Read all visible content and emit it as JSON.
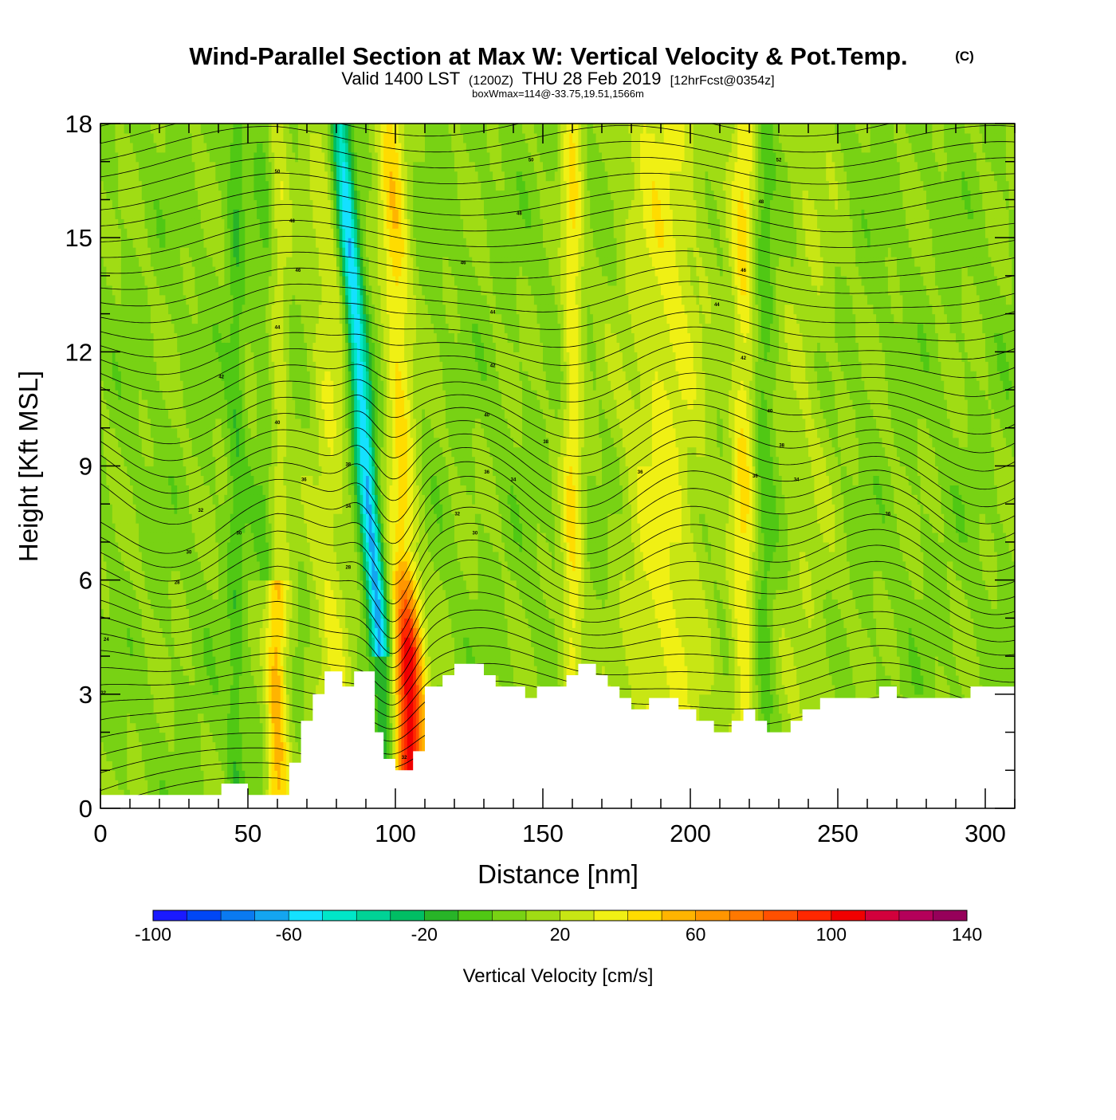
{
  "chart_data": {
    "type": "heatmap",
    "title": "Wind-Parallel Section at Max W: Vertical Velocity & Pot.Temp.",
    "title_mark": "(C)",
    "subtitle": {
      "valid": "Valid 1400 LST",
      "utc": "(1200Z)",
      "date": "THU 28 Feb 2019",
      "forecast": "[12hrFcst@0354z]"
    },
    "box_info": "boxWmax=114@-33.75,19.51,1566m",
    "xlabel": "Distance [nm]",
    "ylabel": "Height [Kft MSL]",
    "xlim": [
      0,
      310
    ],
    "ylim": [
      0,
      18
    ],
    "xticks": [
      0,
      50,
      100,
      150,
      200,
      250,
      300
    ],
    "yticks": [
      0,
      3,
      6,
      9,
      12,
      15,
      18
    ],
    "colorbar": {
      "label": "Vertical Velocity [cm/s]",
      "min": -100,
      "max": 140,
      "step": 10,
      "tick_labels": [
        -100,
        -60,
        -20,
        20,
        60,
        100,
        140
      ],
      "colors": [
        "#1a1aff",
        "#0047f5",
        "#0a7af0",
        "#14a5f0",
        "#14e1ff",
        "#00e6c8",
        "#00d296",
        "#00be64",
        "#28b428",
        "#50c814",
        "#78d214",
        "#a0dc14",
        "#c8e614",
        "#f0f014",
        "#ffdc00",
        "#ffb400",
        "#ff9600",
        "#ff7800",
        "#ff5000",
        "#ff2800",
        "#f00000",
        "#d2003c",
        "#b4005a",
        "#96005a"
      ]
    },
    "ridges": [
      {
        "x": 59,
        "w": 3,
        "v": 60
      },
      {
        "x": 78,
        "w": 5,
        "v": 20
      },
      {
        "x": 104,
        "w": 3.5,
        "v": 100
      },
      {
        "x": 191,
        "w": 10,
        "v": 25
      },
      {
        "x": 160,
        "w": 2.5,
        "v": 30
      },
      {
        "x": 218,
        "w": 3,
        "v": 30
      },
      {
        "x": 240,
        "w": 7,
        "v": 10
      }
    ],
    "troughs": [
      {
        "x": 57,
        "w": 2.5,
        "v": -25
      },
      {
        "x": 46,
        "w": 2,
        "v": -15
      },
      {
        "x": 95,
        "w": 2.5,
        "v": -70
      },
      {
        "x": 225,
        "w": 2.5,
        "v": -15
      }
    ],
    "terrain": [
      [
        0,
        0.35
      ],
      [
        41,
        0.35
      ],
      [
        41,
        0.65
      ],
      [
        50,
        0.65
      ],
      [
        50,
        0.35
      ],
      [
        64,
        0.35
      ],
      [
        64,
        1.2
      ],
      [
        68,
        1.2
      ],
      [
        68,
        2.3
      ],
      [
        72,
        2.3
      ],
      [
        72,
        3.0
      ],
      [
        76,
        3.0
      ],
      [
        76,
        3.6
      ],
      [
        82,
        3.6
      ],
      [
        82,
        3.2
      ],
      [
        86,
        3.2
      ],
      [
        86,
        3.6
      ],
      [
        93,
        3.6
      ],
      [
        93,
        2.0
      ],
      [
        96,
        2.0
      ],
      [
        96,
        1.3
      ],
      [
        100,
        1.3
      ],
      [
        100,
        1.0
      ],
      [
        106,
        1.0
      ],
      [
        106,
        1.5
      ],
      [
        110,
        1.5
      ],
      [
        110,
        3.2
      ],
      [
        116,
        3.2
      ],
      [
        116,
        3.5
      ],
      [
        120,
        3.5
      ],
      [
        120,
        3.8
      ],
      [
        130,
        3.8
      ],
      [
        130,
        3.5
      ],
      [
        134,
        3.5
      ],
      [
        134,
        3.2
      ],
      [
        144,
        3.2
      ],
      [
        144,
        2.9
      ],
      [
        148,
        2.9
      ],
      [
        148,
        3.2
      ],
      [
        158,
        3.2
      ],
      [
        158,
        3.5
      ],
      [
        162,
        3.5
      ],
      [
        162,
        3.8
      ],
      [
        168,
        3.8
      ],
      [
        168,
        3.5
      ],
      [
        172,
        3.5
      ],
      [
        172,
        3.2
      ],
      [
        176,
        3.2
      ],
      [
        176,
        2.9
      ],
      [
        180,
        2.9
      ],
      [
        180,
        2.6
      ],
      [
        186,
        2.6
      ],
      [
        186,
        2.9
      ],
      [
        196,
        2.9
      ],
      [
        196,
        2.6
      ],
      [
        202,
        2.6
      ],
      [
        202,
        2.3
      ],
      [
        208,
        2.3
      ],
      [
        208,
        2.0
      ],
      [
        214,
        2.0
      ],
      [
        214,
        2.3
      ],
      [
        218,
        2.3
      ],
      [
        218,
        2.6
      ],
      [
        222,
        2.6
      ],
      [
        222,
        2.3
      ],
      [
        226,
        2.3
      ],
      [
        226,
        2.0
      ],
      [
        234,
        2.0
      ],
      [
        234,
        2.3
      ],
      [
        238,
        2.3
      ],
      [
        238,
        2.6
      ],
      [
        244,
        2.6
      ],
      [
        244,
        2.9
      ],
      [
        264,
        2.9
      ],
      [
        264,
        3.2
      ],
      [
        270,
        3.2
      ],
      [
        270,
        2.9
      ],
      [
        295,
        2.9
      ],
      [
        295,
        3.2
      ],
      [
        310,
        3.2
      ]
    ],
    "theta_contour_labels": [
      {
        "text": "50",
        "x": 60,
        "y": 16.7
      },
      {
        "text": "48",
        "x": 65,
        "y": 15.4
      },
      {
        "text": "46",
        "x": 67,
        "y": 14.1
      },
      {
        "text": "44",
        "x": 60,
        "y": 12.6
      },
      {
        "text": "42",
        "x": 41,
        "y": 11.3
      },
      {
        "text": "40",
        "x": 60,
        "y": 10.1
      },
      {
        "text": "38",
        "x": 84,
        "y": 9.0
      },
      {
        "text": "36",
        "x": 69,
        "y": 8.6
      },
      {
        "text": "34",
        "x": 84,
        "y": 7.9
      },
      {
        "text": "32",
        "x": 34,
        "y": 7.8
      },
      {
        "text": "30",
        "x": 47,
        "y": 7.2
      },
      {
        "text": "30",
        "x": 30,
        "y": 6.7
      },
      {
        "text": "28",
        "x": 84,
        "y": 6.3
      },
      {
        "text": "28",
        "x": 26,
        "y": 5.9
      },
      {
        "text": "24",
        "x": 2,
        "y": 4.4
      },
      {
        "text": "50",
        "x": 146,
        "y": 17.0
      },
      {
        "text": "48",
        "x": 142,
        "y": 15.6
      },
      {
        "text": "46",
        "x": 123,
        "y": 14.3
      },
      {
        "text": "44",
        "x": 133,
        "y": 13.0
      },
      {
        "text": "42",
        "x": 133,
        "y": 11.6
      },
      {
        "text": "40",
        "x": 131,
        "y": 10.3
      },
      {
        "text": "38",
        "x": 151,
        "y": 9.6
      },
      {
        "text": "36",
        "x": 131,
        "y": 8.8
      },
      {
        "text": "34",
        "x": 140,
        "y": 8.6
      },
      {
        "text": "32",
        "x": 121,
        "y": 7.7
      },
      {
        "text": "30",
        "x": 127,
        "y": 7.2
      },
      {
        "text": "36",
        "x": 183,
        "y": 8.8
      },
      {
        "text": "32",
        "x": 1,
        "y": 3.0
      },
      {
        "text": "52",
        "x": 230,
        "y": 17.0
      },
      {
        "text": "48",
        "x": 224,
        "y": 15.9
      },
      {
        "text": "46",
        "x": 218,
        "y": 14.1
      },
      {
        "text": "44",
        "x": 209,
        "y": 13.2
      },
      {
        "text": "42",
        "x": 218,
        "y": 11.8
      },
      {
        "text": "40",
        "x": 227,
        "y": 10.4
      },
      {
        "text": "38",
        "x": 231,
        "y": 9.5
      },
      {
        "text": "36",
        "x": 222,
        "y": 8.7
      },
      {
        "text": "34",
        "x": 236,
        "y": 8.6
      },
      {
        "text": "36",
        "x": 267,
        "y": 7.7
      },
      {
        "text": "32",
        "x": 103,
        "y": 1.3
      }
    ]
  }
}
